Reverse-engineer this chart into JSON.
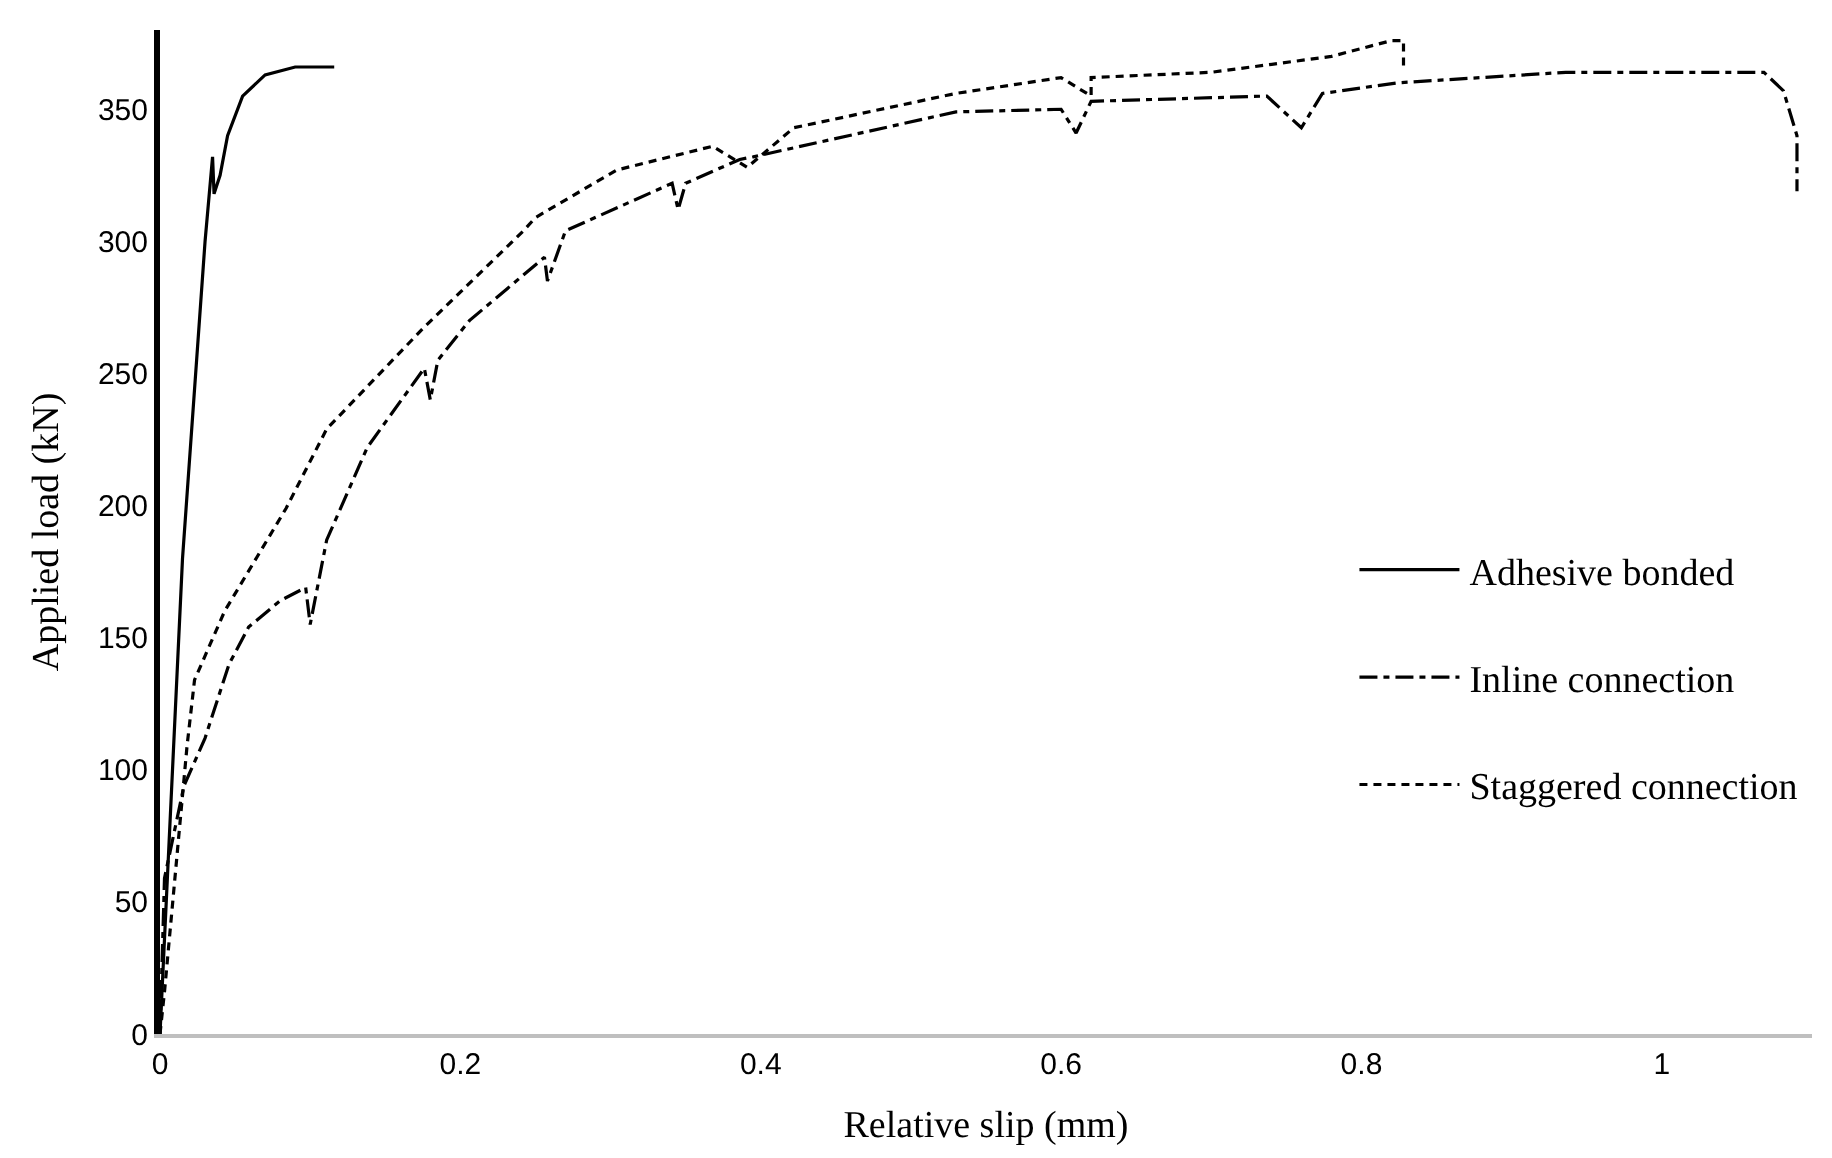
{
  "chart_data": {
    "type": "line",
    "xlabel": "Relative slip (mm)",
    "ylabel": "Applied load (kN)",
    "xlim": [
      0,
      1.1
    ],
    "xticks": [
      0,
      0.2,
      0.4,
      0.6,
      0.8,
      1
    ],
    "ylim": [
      0,
      380
    ],
    "yticks": [
      0,
      50,
      100,
      150,
      200,
      250,
      300,
      350
    ],
    "legend": "right",
    "marker": "none",
    "series": [
      {
        "name": "Adhesive bonded",
        "color": "#000000",
        "line_style": "solid",
        "x": [
          0,
          0.005,
          0.015,
          0.03,
          0.035,
          0.036,
          0.04,
          0.045,
          0.055,
          0.07,
          0.09,
          0.116
        ],
        "values": [
          0,
          60,
          180,
          300,
          332,
          318,
          325,
          340,
          355,
          363,
          366,
          366
        ]
      },
      {
        "name": "Inline connection",
        "color": "#000000",
        "line_style": "dashdot",
        "x": [
          0,
          0.003,
          0.016,
          0.03,
          0.046,
          0.059,
          0.08,
          0.097,
          0.1,
          0.111,
          0.138,
          0.176,
          0.18,
          0.185,
          0.206,
          0.256,
          0.258,
          0.27,
          0.341,
          0.345,
          0.35,
          0.386,
          0.395,
          0.53,
          0.6,
          0.61,
          0.62,
          0.737,
          0.76,
          0.774,
          0.824,
          0.936,
          1.068,
          1.081,
          1.09,
          1.09
        ],
        "values": [
          0,
          59,
          94,
          112,
          140,
          154,
          164,
          169,
          155,
          187,
          222,
          252,
          240,
          255,
          270,
          294,
          285,
          304,
          322,
          312,
          322,
          331,
          332,
          349,
          350,
          341,
          353,
          355,
          343,
          356,
          360,
          364,
          364,
          357,
          340,
          319
        ]
      },
      {
        "name": "Staggered connection",
        "color": "#000000",
        "line_style": "dashed",
        "x": [
          0,
          0.003,
          0.018,
          0.023,
          0.043,
          0.084,
          0.111,
          0.175,
          0.242,
          0.25,
          0.304,
          0.368,
          0.391,
          0.422,
          0.53,
          0.6,
          0.62,
          0.62,
          0.7,
          0.78,
          0.82,
          0.828,
          0.828
        ],
        "values": [
          0,
          16,
          109,
          134,
          160,
          199,
          229,
          267,
          304,
          309,
          327,
          336,
          328,
          343,
          356,
          362,
          355,
          362,
          364,
          370,
          376,
          376,
          365
        ]
      }
    ]
  }
}
